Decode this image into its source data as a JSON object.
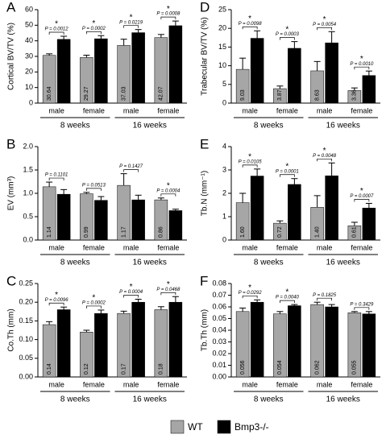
{
  "chart_data": [
    {
      "type": "bar",
      "panel": "A",
      "ylabel": "Cortical BV/TV (%)",
      "categories": [
        "male",
        "female",
        "male",
        "female"
      ],
      "groups": [
        "8 weeks",
        "16 weeks"
      ],
      "ylim": [
        0,
        60
      ],
      "yticks": [
        0,
        10,
        20,
        30,
        40,
        50,
        60
      ],
      "series": [
        {
          "name": "WT",
          "color": "#a6a6a6",
          "values": [
            30.64,
            29.27,
            37.03,
            42.07
          ],
          "errors": [
            1,
            1.5,
            4,
            2
          ]
        },
        {
          "name": "Bmp3-/-",
          "color": "#000000",
          "values": [
            40.93,
            41.32,
            45.23,
            49.7
          ],
          "value_labels": [
            "40.93",
            "41.32",
            "45.23",
            "49.70"
          ],
          "errors": [
            2,
            2,
            2,
            3
          ]
        }
      ],
      "p_values": [
        "P = 0.0012",
        "P = 0.0002",
        "P = 0.0219",
        "P = 0.0008"
      ],
      "significance": [
        "*",
        "*",
        "*",
        "*"
      ]
    },
    {
      "type": "bar",
      "panel": "B",
      "ylabel": "EV (mm³)",
      "categories": [
        "male",
        "female",
        "male",
        "female"
      ],
      "groups": [
        "8 weeks",
        "16 weeks"
      ],
      "ylim": [
        0,
        2
      ],
      "yticks": [
        {
          "value": 0,
          "label": "0.0"
        },
        0.5,
        {
          "value": 1,
          "label": "1.0"
        },
        1.5,
        {
          "value": 2,
          "label": "2.0"
        }
      ],
      "series": [
        {
          "name": "WT",
          "color": "#a6a6a6",
          "values": [
            1.14,
            0.99,
            1.17,
            0.86
          ],
          "errors": [
            0.1,
            0.03,
            0.25,
            0.04
          ]
        },
        {
          "name": "Bmp3-/-",
          "color": "#000000",
          "values": [
            0.98,
            0.85,
            0.86,
            0.63
          ],
          "errors": [
            0.1,
            0.08,
            0.1,
            0.03
          ]
        }
      ],
      "p_values": [
        "P = 0.1101",
        "P = 0.0513",
        "P = 0.1427",
        "P = 0.0004"
      ],
      "significance": [
        null,
        null,
        null,
        "*"
      ]
    },
    {
      "type": "bar",
      "panel": "C",
      "ylabel": "Co.Th (mm)",
      "categories": [
        "male",
        "female",
        "male",
        "female"
      ],
      "groups": [
        "8 weeks",
        "16 weeks"
      ],
      "ylim": [
        0,
        0.25
      ],
      "yticks": [
        {
          "value": 0,
          "label": "0.00"
        },
        0.05,
        {
          "value": 0.1,
          "label": "0.10"
        },
        0.15,
        {
          "value": 0.2,
          "label": "0.20"
        },
        0.25
      ],
      "series": [
        {
          "name": "WT",
          "color": "#a6a6a6",
          "values": [
            0.14,
            0.12,
            0.17,
            0.18
          ],
          "errors": [
            0.008,
            0.005,
            0.006,
            0.008
          ]
        },
        {
          "name": "Bmp3-/-",
          "color": "#000000",
          "values": [
            0.18,
            0.17,
            0.2,
            0.2
          ],
          "value_labels": [
            "0.18",
            "0.17",
            "0.20",
            "0.20"
          ],
          "errors": [
            0.007,
            0.009,
            0.008,
            0.015
          ]
        }
      ],
      "p_values": [
        "P = 0.0096",
        "P = 0.0002",
        "P = 0.0004",
        "P = 0.0468"
      ],
      "significance": [
        "*",
        "*",
        "*",
        "*"
      ]
    },
    {
      "type": "bar",
      "panel": "D",
      "ylabel": "Trabecular BV/TV (%)",
      "categories": [
        "male",
        "female",
        "male",
        "female"
      ],
      "groups": [
        "8 weeks",
        "16 weeks"
      ],
      "ylim": [
        0,
        25
      ],
      "yticks": [
        0,
        5,
        10,
        15,
        20,
        25
      ],
      "series": [
        {
          "name": "WT",
          "color": "#a6a6a6",
          "values": [
            9.03,
            3.87,
            8.63,
            3.36
          ],
          "errors": [
            3,
            0.7,
            2.5,
            0.7
          ]
        },
        {
          "name": "Bmp3-/-",
          "color": "#000000",
          "values": [
            17.34,
            14.66,
            16.12,
            7.38
          ],
          "errors": [
            2,
            1.8,
            3,
            1.2
          ]
        }
      ],
      "p_values": [
        "P = 0.0098",
        "P = 0.0003",
        "P = 0.0054",
        "P = 0.0010"
      ],
      "significance": [
        "*",
        "*",
        "*",
        "*"
      ]
    },
    {
      "type": "bar",
      "panel": "E",
      "ylabel": "Tb.N (mm⁻¹)",
      "categories": [
        "male",
        "female",
        "male",
        "female"
      ],
      "groups": [
        "8 weeks",
        "16 weeks"
      ],
      "ylim": [
        0,
        4
      ],
      "yticks": [
        0,
        1,
        2,
        3,
        4
      ],
      "series": [
        {
          "name": "WT",
          "color": "#a6a6a6",
          "values": [
            1.6,
            0.72,
            1.4,
            0.61
          ],
          "value_labels": [
            "1.60",
            "0.72",
            "1.40",
            "0.61"
          ],
          "errors": [
            0.4,
            0.1,
            0.5,
            0.15
          ]
        },
        {
          "name": "Bmp3-/-",
          "color": "#000000",
          "values": [
            2.74,
            2.38,
            2.75,
            1.37
          ],
          "errors": [
            0.3,
            0.25,
            0.55,
            0.2
          ]
        }
      ],
      "p_values": [
        "P = 0.0105",
        "P = 0.0001",
        "P = 0.0048",
        "P = 0.0007"
      ],
      "significance": [
        "*",
        "*",
        "*",
        "*"
      ]
    },
    {
      "type": "bar",
      "panel": "F",
      "ylabel": "Tb.Th (mm)",
      "categories": [
        "male",
        "female",
        "male",
        "female"
      ],
      "groups": [
        "8 weeks",
        "16 weeks"
      ],
      "ylim": [
        0,
        0.08
      ],
      "yticks": [
        {
          "value": 0,
          "label": "0.00"
        },
        0.01,
        0.02,
        0.03,
        0.04,
        0.05,
        0.06,
        0.07,
        0.08
      ],
      "series": [
        {
          "name": "WT",
          "color": "#a6a6a6",
          "values": [
            0.056,
            0.054,
            0.062,
            0.055
          ],
          "errors": [
            0.003,
            0.002,
            0.002,
            0.001
          ]
        },
        {
          "name": "Bmp3-/-",
          "color": "#000000",
          "values": [
            0.064,
            0.061,
            0.06,
            0.054
          ],
          "value_labels": [
            "0.064",
            "0.061",
            "0.060",
            "0.054"
          ],
          "errors": [
            0.002,
            0.001,
            0.002,
            0.002
          ]
        }
      ],
      "p_values": [
        "P = 0.0292",
        "P = 0.0040",
        "P = 0.1825",
        "P = 0.3429"
      ],
      "significance": [
        "*",
        "*",
        null,
        null
      ]
    }
  ]
}
